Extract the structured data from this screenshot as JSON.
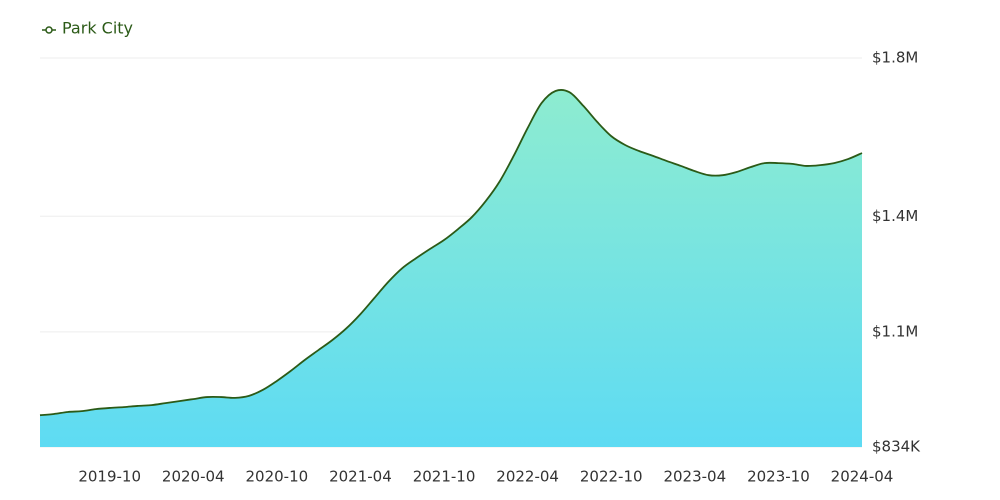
{
  "chart_data": {
    "type": "area",
    "categories": [
      null,
      null,
      null,
      null,
      null,
      "2019-10",
      null,
      null,
      null,
      null,
      null,
      "2020-04",
      null,
      null,
      null,
      null,
      null,
      "2020-10",
      null,
      null,
      null,
      null,
      null,
      "2021-04",
      null,
      null,
      null,
      null,
      null,
      "2021-10",
      null,
      null,
      null,
      null,
      null,
      "2022-04",
      null,
      null,
      null,
      null,
      null,
      "2022-10",
      null,
      null,
      null,
      null,
      null,
      "2023-04",
      null,
      null,
      null,
      null,
      null,
      "2023-10",
      null,
      null,
      null,
      null,
      null,
      "2024-04"
    ],
    "series": [
      {
        "name": "Park City",
        "color": "#2b5a17",
        "fill_gradient": [
          "#8eecd0",
          "#5edbf3"
        ],
        "values": [
          913000,
          916000,
          921000,
          923000,
          928000,
          931000,
          933000,
          936000,
          938000,
          943000,
          948000,
          953000,
          958000,
          958000,
          956000,
          961000,
          976000,
          998000,
          1023000,
          1050000,
          1075000,
          1100000,
          1129000,
          1164000,
          1204000,
          1244000,
          1278000,
          1303000,
          1326000,
          1348000,
          1375000,
          1405000,
          1445000,
          1494000,
          1557000,
          1626000,
          1688000,
          1718000,
          1715000,
          1681000,
          1641000,
          1606000,
          1584000,
          1569000,
          1557000,
          1544000,
          1532000,
          1519000,
          1509000,
          1509000,
          1517000,
          1529000,
          1539000,
          1539000,
          1537000,
          1532000,
          1534000,
          1539000,
          1549000,
          1564000
        ]
      }
    ],
    "ylim": [
      834000,
      1800000
    ],
    "yticks": [
      {
        "value": 834000,
        "label": "$834K"
      },
      {
        "value": 1120000,
        "label": "$1.1M"
      },
      {
        "value": 1407000,
        "label": "$1.4M"
      },
      {
        "value": 1800000,
        "label": "$1.8M"
      }
    ],
    "grid": true,
    "legend": "top-left"
  }
}
